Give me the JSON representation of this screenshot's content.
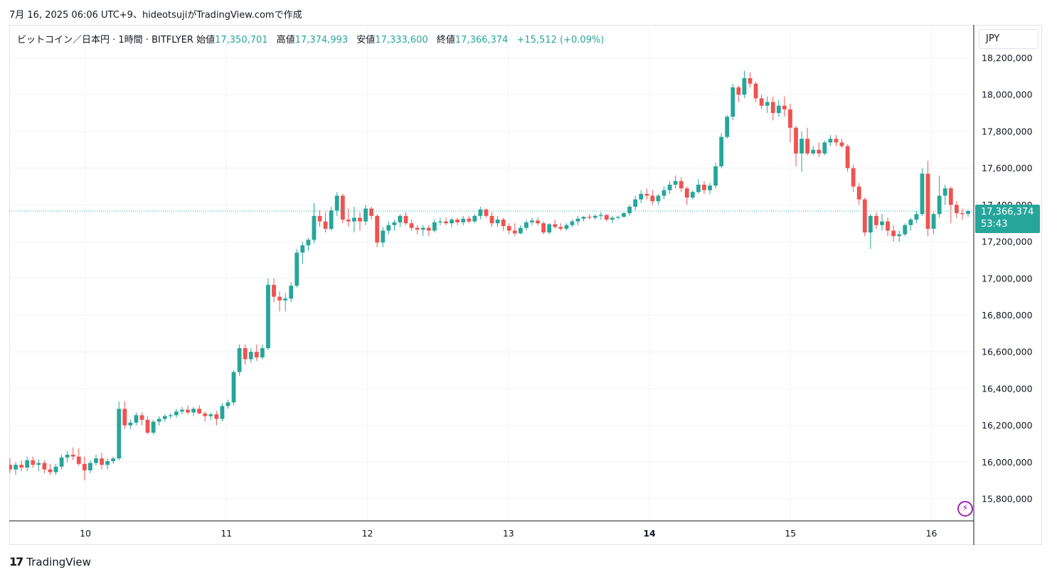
{
  "caption": "7月 16, 2025 06:06 UTC+9、hideotsujiがTradingView.comで作成",
  "legend": {
    "symbol": "ビットコイン／日本円 · 1時間 · BITFLYER",
    "open_label": "始値",
    "open": "17,350,701",
    "high_label": "高値",
    "high": "17,374,993",
    "low_label": "安値",
    "low": "17,333,600",
    "close_label": "終値",
    "close": "17,366,374",
    "change": "+15,512 (+0.09%)"
  },
  "currency": "JPY",
  "price_tag": {
    "price": "17,366,374",
    "countdown": "53:43"
  },
  "footer": {
    "logo_mark": "17",
    "brand": "TradingView"
  },
  "colors": {
    "up": "#26a69a",
    "down": "#ef5350",
    "grid": "#f0f3fa",
    "accent": "#9c27b0"
  },
  "icons": {
    "alert": "lightning-bolt-icon"
  },
  "chart_data": {
    "type": "candlestick",
    "interval": "1h",
    "y_tick_labels": [
      "15,800,000",
      "16,000,000",
      "16,200,000",
      "16,400,000",
      "16,600,000",
      "16,800,000",
      "17,000,000",
      "17,200,000",
      "17,400,000",
      "17,600,000",
      "17,800,000",
      "18,000,000",
      "18,200,000"
    ],
    "x_tick_labels": [
      "10",
      "11",
      "12",
      "13",
      "14",
      "15",
      "16"
    ],
    "ylim": [
      15680000,
      18380000
    ],
    "xlim": [
      9.46,
      16.3
    ],
    "last_price": 17366374,
    "grid": true,
    "ohlc": [
      [
        15985000,
        16020000,
        15940000,
        15960000
      ],
      [
        15960000,
        16000000,
        15930000,
        15985000
      ],
      [
        15985000,
        16010000,
        15950000,
        15970000
      ],
      [
        15970000,
        16030000,
        15950000,
        16010000
      ],
      [
        16010000,
        16030000,
        15970000,
        15985000
      ],
      [
        15985000,
        16015000,
        15950000,
        15995000
      ],
      [
        15995000,
        16010000,
        15940000,
        15960000
      ],
      [
        15960000,
        15990000,
        15930000,
        15945000
      ],
      [
        15945000,
        15990000,
        15930000,
        15975000
      ],
      [
        15975000,
        16040000,
        15960000,
        16025000
      ],
      [
        16025000,
        16060000,
        16000000,
        16040000
      ],
      [
        16040000,
        16080000,
        16010000,
        16030000
      ],
      [
        16030000,
        16075000,
        15980000,
        15990000
      ],
      [
        15990000,
        16030000,
        15900000,
        15955000
      ],
      [
        15955000,
        16010000,
        15940000,
        15995000
      ],
      [
        15995000,
        16040000,
        15980000,
        16020000
      ],
      [
        16020000,
        16050000,
        15960000,
        15985000
      ],
      [
        15985000,
        16020000,
        15960000,
        16005000
      ],
      [
        16005000,
        16030000,
        15990000,
        16020000
      ],
      [
        16020000,
        16330000,
        16010000,
        16290000
      ],
      [
        16290000,
        16330000,
        16180000,
        16200000
      ],
      [
        16200000,
        16230000,
        16180000,
        16215000
      ],
      [
        16215000,
        16270000,
        16200000,
        16255000
      ],
      [
        16255000,
        16270000,
        16200000,
        16230000
      ],
      [
        16230000,
        16250000,
        16150000,
        16160000
      ],
      [
        16160000,
        16230000,
        16150000,
        16220000
      ],
      [
        16220000,
        16250000,
        16200000,
        16235000
      ],
      [
        16235000,
        16260000,
        16220000,
        16250000
      ],
      [
        16250000,
        16265000,
        16235000,
        16255000
      ],
      [
        16255000,
        16290000,
        16240000,
        16275000
      ],
      [
        16275000,
        16300000,
        16260000,
        16285000
      ],
      [
        16285000,
        16310000,
        16260000,
        16270000
      ],
      [
        16270000,
        16300000,
        16250000,
        16290000
      ],
      [
        16290000,
        16310000,
        16260000,
        16265000
      ],
      [
        16265000,
        16275000,
        16220000,
        16250000
      ],
      [
        16250000,
        16270000,
        16230000,
        16260000
      ],
      [
        16260000,
        16280000,
        16200000,
        16235000
      ],
      [
        16235000,
        16320000,
        16220000,
        16305000
      ],
      [
        16305000,
        16340000,
        16290000,
        16325000
      ],
      [
        16325000,
        16500000,
        16310000,
        16490000
      ],
      [
        16490000,
        16640000,
        16470000,
        16620000
      ],
      [
        16620000,
        16640000,
        16530000,
        16560000
      ],
      [
        16560000,
        16620000,
        16540000,
        16600000
      ],
      [
        16600000,
        16640000,
        16550000,
        16570000
      ],
      [
        16570000,
        16640000,
        16560000,
        16620000
      ],
      [
        16620000,
        17000000,
        16610000,
        16965000
      ],
      [
        16965000,
        17000000,
        16870000,
        16900000
      ],
      [
        16900000,
        16930000,
        16820000,
        16880000
      ],
      [
        16880000,
        16920000,
        16820000,
        16890000
      ],
      [
        16890000,
        16980000,
        16870000,
        16960000
      ],
      [
        16960000,
        17160000,
        16950000,
        17140000
      ],
      [
        17140000,
        17200000,
        17080000,
        17180000
      ],
      [
        17180000,
        17220000,
        17150000,
        17210000
      ],
      [
        17210000,
        17410000,
        17190000,
        17340000
      ],
      [
        17340000,
        17370000,
        17280000,
        17310000
      ],
      [
        17310000,
        17360000,
        17250000,
        17270000
      ],
      [
        17270000,
        17390000,
        17260000,
        17370000
      ],
      [
        17370000,
        17470000,
        17340000,
        17450000
      ],
      [
        17450000,
        17460000,
        17300000,
        17320000
      ],
      [
        17320000,
        17380000,
        17280000,
        17310000
      ],
      [
        17310000,
        17390000,
        17250000,
        17330000
      ],
      [
        17330000,
        17360000,
        17260000,
        17310000
      ],
      [
        17310000,
        17400000,
        17290000,
        17380000
      ],
      [
        17380000,
        17390000,
        17320000,
        17340000
      ],
      [
        17340000,
        17350000,
        17170000,
        17195000
      ],
      [
        17195000,
        17280000,
        17170000,
        17260000
      ],
      [
        17260000,
        17310000,
        17240000,
        17290000
      ],
      [
        17290000,
        17320000,
        17260000,
        17305000
      ],
      [
        17305000,
        17350000,
        17280000,
        17340000
      ],
      [
        17340000,
        17360000,
        17290000,
        17300000
      ],
      [
        17300000,
        17320000,
        17260000,
        17275000
      ],
      [
        17275000,
        17290000,
        17240000,
        17265000
      ],
      [
        17265000,
        17290000,
        17230000,
        17275000
      ],
      [
        17275000,
        17290000,
        17230000,
        17260000
      ],
      [
        17260000,
        17320000,
        17250000,
        17305000
      ],
      [
        17305000,
        17330000,
        17290000,
        17310000
      ],
      [
        17310000,
        17330000,
        17290000,
        17300000
      ],
      [
        17300000,
        17330000,
        17280000,
        17320000
      ],
      [
        17320000,
        17330000,
        17290000,
        17305000
      ],
      [
        17305000,
        17340000,
        17290000,
        17325000
      ],
      [
        17325000,
        17340000,
        17300000,
        17310000
      ],
      [
        17310000,
        17350000,
        17300000,
        17340000
      ],
      [
        17340000,
        17390000,
        17320000,
        17375000
      ],
      [
        17375000,
        17380000,
        17330000,
        17340000
      ],
      [
        17340000,
        17360000,
        17280000,
        17300000
      ],
      [
        17300000,
        17340000,
        17280000,
        17320000
      ],
      [
        17320000,
        17330000,
        17260000,
        17285000
      ],
      [
        17285000,
        17300000,
        17240000,
        17260000
      ],
      [
        17260000,
        17300000,
        17230000,
        17245000
      ],
      [
        17245000,
        17290000,
        17240000,
        17275000
      ],
      [
        17275000,
        17320000,
        17260000,
        17305000
      ],
      [
        17305000,
        17330000,
        17290000,
        17315000
      ],
      [
        17315000,
        17330000,
        17290000,
        17300000
      ],
      [
        17300000,
        17310000,
        17240000,
        17250000
      ],
      [
        17250000,
        17300000,
        17240000,
        17295000
      ],
      [
        17295000,
        17320000,
        17270000,
        17280000
      ],
      [
        17280000,
        17300000,
        17260000,
        17270000
      ],
      [
        17270000,
        17300000,
        17260000,
        17290000
      ],
      [
        17290000,
        17320000,
        17280000,
        17310000
      ],
      [
        17310000,
        17340000,
        17290000,
        17325000
      ],
      [
        17325000,
        17340000,
        17310000,
        17335000
      ],
      [
        17335000,
        17350000,
        17320000,
        17330000
      ],
      [
        17330000,
        17350000,
        17320000,
        17340000
      ],
      [
        17340000,
        17360000,
        17320000,
        17345000
      ],
      [
        17345000,
        17350000,
        17310000,
        17320000
      ],
      [
        17320000,
        17340000,
        17300000,
        17330000
      ],
      [
        17330000,
        17340000,
        17320000,
        17335000
      ],
      [
        17335000,
        17360000,
        17330000,
        17355000
      ],
      [
        17355000,
        17400000,
        17340000,
        17390000
      ],
      [
        17390000,
        17450000,
        17370000,
        17430000
      ],
      [
        17430000,
        17480000,
        17410000,
        17460000
      ],
      [
        17460000,
        17490000,
        17430000,
        17450000
      ],
      [
        17450000,
        17480000,
        17400000,
        17420000
      ],
      [
        17420000,
        17460000,
        17400000,
        17450000
      ],
      [
        17450000,
        17500000,
        17430000,
        17480000
      ],
      [
        17480000,
        17530000,
        17460000,
        17510000
      ],
      [
        17510000,
        17560000,
        17490000,
        17530000
      ],
      [
        17530000,
        17550000,
        17470000,
        17490000
      ],
      [
        17490000,
        17500000,
        17400000,
        17440000
      ],
      [
        17440000,
        17480000,
        17430000,
        17470000
      ],
      [
        17470000,
        17540000,
        17460000,
        17510000
      ],
      [
        17510000,
        17530000,
        17460000,
        17480000
      ],
      [
        17480000,
        17520000,
        17460000,
        17505000
      ],
      [
        17505000,
        17630000,
        17490000,
        17610000
      ],
      [
        17610000,
        17790000,
        17600000,
        17770000
      ],
      [
        17770000,
        17890000,
        17760000,
        17880000
      ],
      [
        17880000,
        18060000,
        17860000,
        18040000
      ],
      [
        18040000,
        18050000,
        17960000,
        18000000
      ],
      [
        18000000,
        18130000,
        17980000,
        18090000
      ],
      [
        18090000,
        18120000,
        18040000,
        18060000
      ],
      [
        18060000,
        18070000,
        17960000,
        17980000
      ],
      [
        17980000,
        18000000,
        17920000,
        17940000
      ],
      [
        17940000,
        17990000,
        17900000,
        17960000
      ],
      [
        17960000,
        17990000,
        17860000,
        17900000
      ],
      [
        17900000,
        17970000,
        17880000,
        17940000
      ],
      [
        17940000,
        17990000,
        17880000,
        17920000
      ],
      [
        17920000,
        17950000,
        17740000,
        17820000
      ],
      [
        17820000,
        17830000,
        17610000,
        17680000
      ],
      [
        17680000,
        17800000,
        17580000,
        17760000
      ],
      [
        17760000,
        17820000,
        17670000,
        17680000
      ],
      [
        17680000,
        17720000,
        17670000,
        17700000
      ],
      [
        17700000,
        17740000,
        17660000,
        17680000
      ],
      [
        17680000,
        17750000,
        17670000,
        17740000
      ],
      [
        17740000,
        17780000,
        17720000,
        17760000
      ],
      [
        17760000,
        17780000,
        17720000,
        17740000
      ],
      [
        17740000,
        17760000,
        17710000,
        17720000
      ],
      [
        17720000,
        17730000,
        17580000,
        17600000
      ],
      [
        17600000,
        17620000,
        17470000,
        17500000
      ],
      [
        17500000,
        17520000,
        17400000,
        17430000
      ],
      [
        17430000,
        17440000,
        17230000,
        17250000
      ],
      [
        17250000,
        17350000,
        17160000,
        17340000
      ],
      [
        17340000,
        17360000,
        17270000,
        17290000
      ],
      [
        17290000,
        17350000,
        17260000,
        17310000
      ],
      [
        17310000,
        17330000,
        17230000,
        17260000
      ],
      [
        17260000,
        17290000,
        17200000,
        17230000
      ],
      [
        17230000,
        17260000,
        17200000,
        17240000
      ],
      [
        17240000,
        17300000,
        17230000,
        17290000
      ],
      [
        17290000,
        17330000,
        17260000,
        17320000
      ],
      [
        17320000,
        17370000,
        17300000,
        17350000
      ],
      [
        17350000,
        17600000,
        17340000,
        17570000
      ],
      [
        17570000,
        17640000,
        17230000,
        17270000
      ],
      [
        17270000,
        17360000,
        17240000,
        17350000
      ],
      [
        17350000,
        17560000,
        17330000,
        17450000
      ],
      [
        17450000,
        17510000,
        17400000,
        17490000
      ],
      [
        17490000,
        17500000,
        17300000,
        17400000
      ],
      [
        17400000,
        17420000,
        17330000,
        17355000
      ],
      [
        17355000,
        17380000,
        17320000,
        17350000
      ],
      [
        17350701,
        17374993,
        17333600,
        17366374
      ]
    ]
  }
}
